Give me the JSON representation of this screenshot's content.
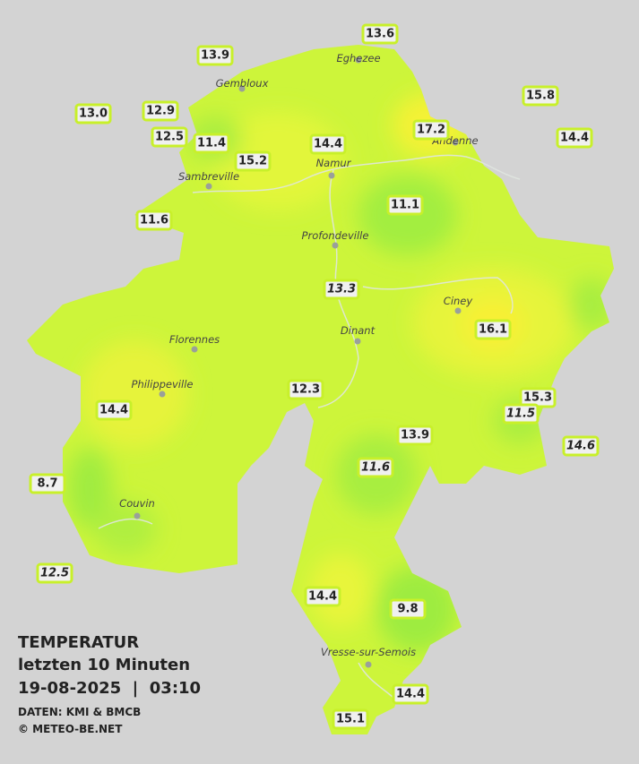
{
  "header": {
    "title": "TEMPERATUR",
    "subtitle": "letzten 10 Minuten",
    "datetime": "19-08-2025  |  03:10",
    "source": "DATEN: KMI & BMCB",
    "copyright": "© METEO-BE.NET"
  },
  "cities": [
    "Eghezee",
    "Gembloux",
    "Andenne",
    "Namur",
    "Sambreville",
    "Profondeville",
    "Ciney",
    "Dinant",
    "Florennes",
    "Philippeville",
    "Couvin",
    "Vresse-sur-Semois"
  ],
  "stations": [
    {
      "label": "13.6"
    },
    {
      "label": "13.9"
    },
    {
      "label": "15.8"
    },
    {
      "label": "13.0"
    },
    {
      "label": "12.9"
    },
    {
      "label": "17.2"
    },
    {
      "label": "14.4"
    },
    {
      "label": "12.5"
    },
    {
      "label": "11.4"
    },
    {
      "label": "14.4"
    },
    {
      "label": "15.2"
    },
    {
      "label": "11.1"
    },
    {
      "label": "11.6"
    },
    {
      "label": "13.3",
      "style": "italic"
    },
    {
      "label": "16.1"
    },
    {
      "label": "12.3"
    },
    {
      "label": "15.3"
    },
    {
      "label": "11.5",
      "style": "italic"
    },
    {
      "label": "14.4"
    },
    {
      "label": "13.9"
    },
    {
      "label": "14.6",
      "style": "italic"
    },
    {
      "label": "11.6",
      "style": "italic"
    },
    {
      "label": "8.7"
    },
    {
      "label": "12.5",
      "style": "italic"
    },
    {
      "label": "14.4"
    },
    {
      "label": "9.8"
    },
    {
      "label": "14.4"
    },
    {
      "label": "15.1"
    }
  ]
}
